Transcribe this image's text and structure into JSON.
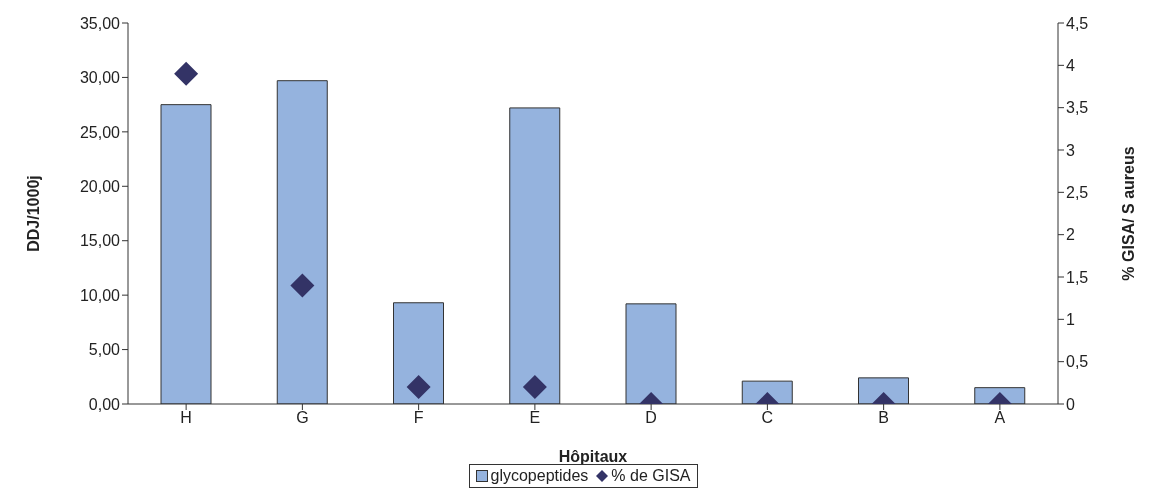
{
  "chart_data": {
    "type": "bar",
    "xlabel": "Hôpitaux",
    "ylabel": "DDJ/1000j",
    "y2label": "% GISA/ S aureus",
    "categories": [
      "H",
      "G",
      "F",
      "E",
      "D",
      "C",
      "B",
      "A"
    ],
    "series": [
      {
        "name": "glycopeptides",
        "color": "#95b3de",
        "values": [
          27.5,
          29.7,
          9.3,
          27.2,
          9.2,
          2.1,
          2.4,
          1.5
        ]
      },
      {
        "name": "% de GISA",
        "type": "scatter",
        "axis": "y2",
        "color": "#333366",
        "marker": "diamond",
        "values": [
          3.9,
          1.4,
          0.2,
          0.2,
          0,
          0,
          0,
          0
        ]
      }
    ],
    "ylim": [
      0,
      35
    ],
    "yticks": [
      {
        "value": 0,
        "label": "0,00"
      },
      {
        "value": 5,
        "label": "5,00"
      },
      {
        "value": 10,
        "label": "10,00"
      },
      {
        "value": 15,
        "label": "15,00"
      },
      {
        "value": 20,
        "label": "20,00"
      },
      {
        "value": 25,
        "label": "25,00"
      },
      {
        "value": 30,
        "label": "30,00"
      },
      {
        "value": 35,
        "label": "35,00"
      }
    ],
    "y2lim": [
      0,
      4.5
    ],
    "y2ticks": [
      0,
      {
        "value": 0.5,
        "label": "0,5"
      },
      1,
      {
        "value": 1.5,
        "label": "1,5"
      },
      2,
      {
        "value": 2.5,
        "label": "2,5"
      },
      3,
      {
        "value": 3.5,
        "label": "3,5"
      },
      4,
      {
        "value": 4.5,
        "label": "4,5"
      }
    ],
    "grid": false,
    "legend": "bottom"
  }
}
